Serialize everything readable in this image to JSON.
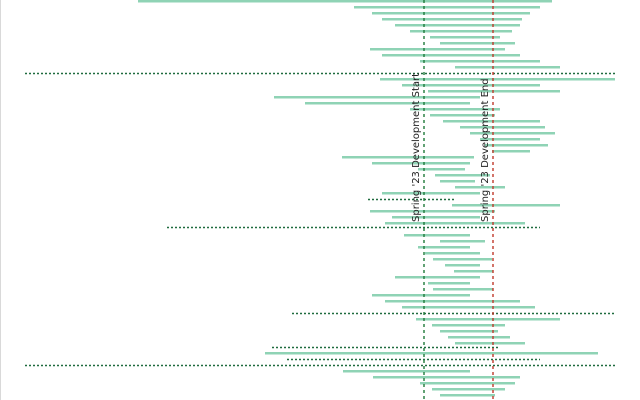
{
  "chart_data": {
    "type": "bar",
    "subtype": "horizontal-timeline-ranges",
    "x_range": [
      0,
      640
    ],
    "bar_count": 400,
    "colors": {
      "bar": "#8fd3b5",
      "dotted_bar": "#1f6b3f",
      "start_marker": "#1f7a3a",
      "end_marker": "#c0392b"
    },
    "markers": [
      {
        "label": "Spring '23 Development Start",
        "x": 424,
        "color": "#1f7a3a"
      },
      {
        "label": "Spring '23 Development End",
        "x": 493,
        "color": "#c0392b"
      }
    ],
    "ranges": [
      {
        "y": 0,
        "start": 138,
        "end": 552
      },
      {
        "y": 6,
        "start": 354,
        "end": 540
      },
      {
        "y": 12,
        "start": 372,
        "end": 530
      },
      {
        "y": 18,
        "start": 382,
        "end": 522
      },
      {
        "y": 24,
        "start": 395,
        "end": 520
      },
      {
        "y": 30,
        "start": 410,
        "end": 512
      },
      {
        "y": 36,
        "start": 430,
        "end": 500
      },
      {
        "y": 42,
        "start": 440,
        "end": 515
      },
      {
        "y": 48,
        "start": 370,
        "end": 505
      },
      {
        "y": 54,
        "start": 382,
        "end": 520
      },
      {
        "y": 60,
        "start": 420,
        "end": 540
      },
      {
        "y": 66,
        "start": 455,
        "end": 560
      },
      {
        "y": 72,
        "start": 25,
        "end": 615,
        "dotted": true
      },
      {
        "y": 78,
        "start": 380,
        "end": 615
      },
      {
        "y": 84,
        "start": 402,
        "end": 540
      },
      {
        "y": 90,
        "start": 428,
        "end": 560
      },
      {
        "y": 96,
        "start": 274,
        "end": 480
      },
      {
        "y": 102,
        "start": 305,
        "end": 470
      },
      {
        "y": 108,
        "start": 410,
        "end": 500
      },
      {
        "y": 114,
        "start": 430,
        "end": 495
      },
      {
        "y": 120,
        "start": 443,
        "end": 540
      },
      {
        "y": 126,
        "start": 460,
        "end": 545
      },
      {
        "y": 132,
        "start": 470,
        "end": 555
      },
      {
        "y": 138,
        "start": 480,
        "end": 540
      },
      {
        "y": 144,
        "start": 485,
        "end": 548
      },
      {
        "y": 150,
        "start": 492,
        "end": 530
      },
      {
        "y": 156,
        "start": 342,
        "end": 474
      },
      {
        "y": 162,
        "start": 372,
        "end": 470
      },
      {
        "y": 168,
        "start": 418,
        "end": 465
      },
      {
        "y": 174,
        "start": 435,
        "end": 490
      },
      {
        "y": 180,
        "start": 440,
        "end": 475
      },
      {
        "y": 186,
        "start": 455,
        "end": 505
      },
      {
        "y": 192,
        "start": 382,
        "end": 480
      },
      {
        "y": 198,
        "start": 368,
        "end": 455,
        "dotted": true
      },
      {
        "y": 204,
        "start": 452,
        "end": 560
      },
      {
        "y": 210,
        "start": 370,
        "end": 495
      },
      {
        "y": 216,
        "start": 392,
        "end": 480
      },
      {
        "y": 222,
        "start": 385,
        "end": 525
      },
      {
        "y": 226,
        "start": 167,
        "end": 540,
        "dotted": true
      },
      {
        "y": 234,
        "start": 404,
        "end": 470
      },
      {
        "y": 240,
        "start": 440,
        "end": 485
      },
      {
        "y": 246,
        "start": 418,
        "end": 470
      },
      {
        "y": 252,
        "start": 425,
        "end": 480
      },
      {
        "y": 258,
        "start": 433,
        "end": 492
      },
      {
        "y": 264,
        "start": 445,
        "end": 480
      },
      {
        "y": 270,
        "start": 454,
        "end": 493
      },
      {
        "y": 276,
        "start": 395,
        "end": 480
      },
      {
        "y": 282,
        "start": 428,
        "end": 470
      },
      {
        "y": 288,
        "start": 433,
        "end": 493
      },
      {
        "y": 294,
        "start": 372,
        "end": 470
      },
      {
        "y": 300,
        "start": 385,
        "end": 520
      },
      {
        "y": 306,
        "start": 402,
        "end": 535
      },
      {
        "y": 312,
        "start": 292,
        "end": 615,
        "dotted": true
      },
      {
        "y": 318,
        "start": 416,
        "end": 560
      },
      {
        "y": 324,
        "start": 432,
        "end": 505
      },
      {
        "y": 330,
        "start": 440,
        "end": 498
      },
      {
        "y": 336,
        "start": 448,
        "end": 510
      },
      {
        "y": 342,
        "start": 455,
        "end": 525
      },
      {
        "y": 346,
        "start": 272,
        "end": 500,
        "dotted": true
      },
      {
        "y": 352,
        "start": 265,
        "end": 598
      },
      {
        "y": 358,
        "start": 287,
        "end": 540,
        "dotted": true
      },
      {
        "y": 364,
        "start": 25,
        "end": 615,
        "dotted": true
      },
      {
        "y": 370,
        "start": 343,
        "end": 470
      },
      {
        "y": 376,
        "start": 373,
        "end": 520
      },
      {
        "y": 382,
        "start": 420,
        "end": 515
      },
      {
        "y": 388,
        "start": 432,
        "end": 505
      },
      {
        "y": 394,
        "start": 440,
        "end": 495
      }
    ]
  }
}
